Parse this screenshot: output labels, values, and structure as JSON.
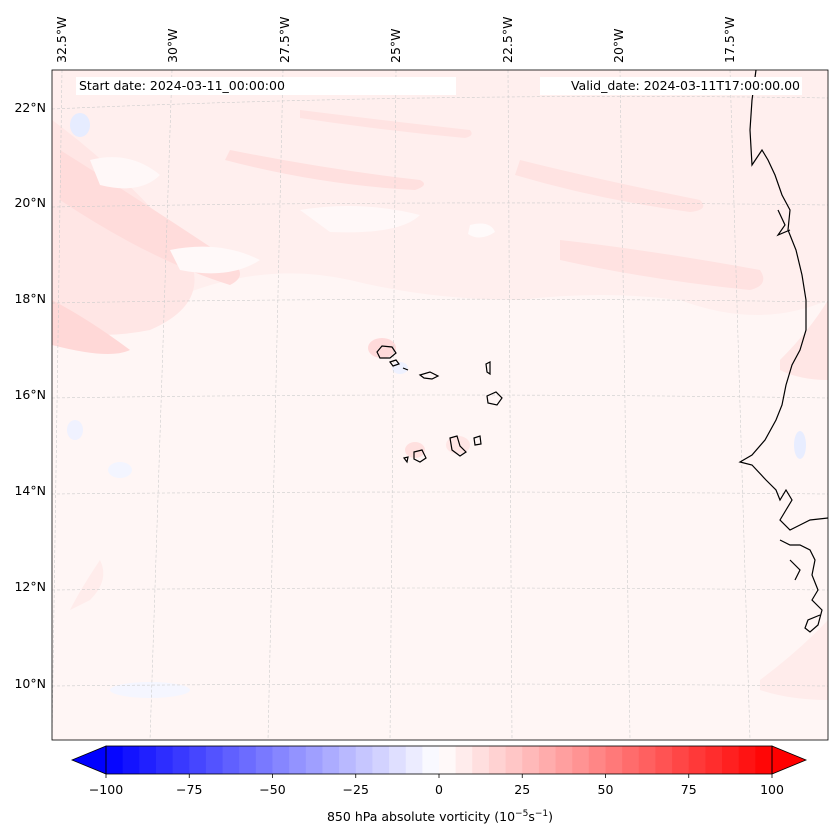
{
  "map": {
    "start_label": "Start date: 2024-03-11_00:00:00",
    "valid_label": "Valid_date: 2024-03-11T17:00:00.00",
    "lon_labels": [
      "32.5°W",
      "30°W",
      "27.5°W",
      "25°W",
      "22.5°W",
      "20°W",
      "17.5°W"
    ],
    "lat_labels": [
      "22°N",
      "20°N",
      "18°N",
      "16°N",
      "14°N",
      "12°N",
      "10°N"
    ],
    "colors": {
      "coast": "#000000",
      "grid": "#c8c8c8",
      "weak_positive": "#fff0f0",
      "positive": "#ffdede",
      "strong_positive": "#ffd0d0",
      "negative": "#eef2ff"
    }
  },
  "colorbar": {
    "label": "850 hPa absolute vorticity (10",
    "label_exp1": "−5",
    "label_mid": "s",
    "label_exp2": "−1",
    "label_end": ")",
    "min": -100,
    "max": 100,
    "levels": 40,
    "ticks": [
      "−100",
      "−75",
      "−50",
      "−25",
      "0",
      "25",
      "50",
      "75",
      "100"
    ],
    "colormap": "bwr"
  }
}
